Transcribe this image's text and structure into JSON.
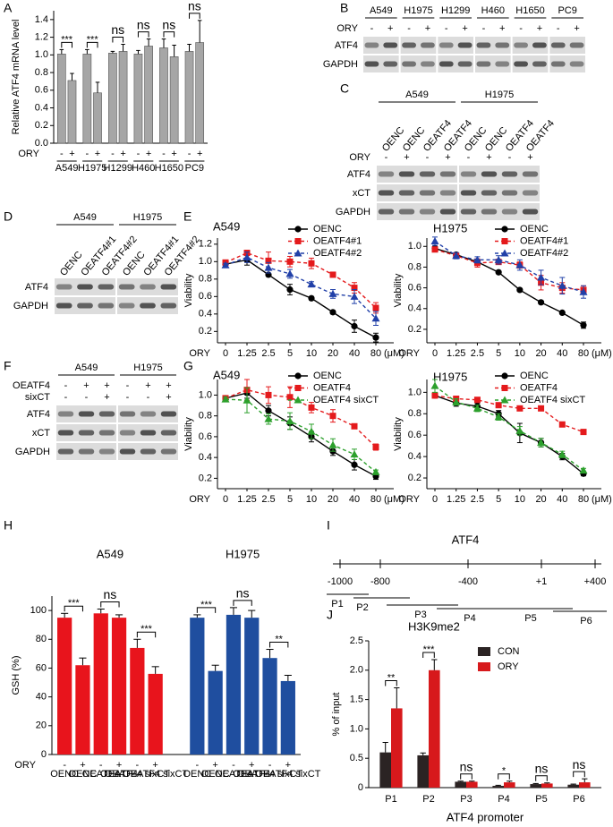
{
  "panels": [
    "A",
    "B",
    "C",
    "D",
    "E",
    "F",
    "G",
    "H",
    "I",
    "J"
  ],
  "chart_data": [
    {
      "type": "bar",
      "ylabel": "Relative ATF4 mRNA level",
      "row_label": "ORY",
      "categories": [
        "-",
        "+",
        "-",
        "+",
        "-",
        "+",
        "-",
        "+",
        "-",
        "+",
        "-",
        "+"
      ],
      "groups": [
        "A549",
        "H1975",
        "H1299",
        "H460",
        "H1650",
        "PC9"
      ],
      "values": [
        1.01,
        0.71,
        1.01,
        0.57,
        1.02,
        1.04,
        1.01,
        1.1,
        1.08,
        0.98,
        1.04,
        1.14
      ],
      "errors": [
        0.05,
        0.08,
        0.05,
        0.12,
        0.02,
        0.08,
        0.04,
        0.08,
        0.1,
        0.13,
        0.08,
        0.25
      ],
      "color": "#a6a6a6",
      "annotations": [
        "***",
        "***",
        "ns",
        "ns",
        "ns",
        "ns"
      ],
      "ylim": [
        0,
        1.5
      ],
      "yticks": [
        {
          "value": 0,
          "label": "0.0"
        },
        0.2,
        0.4,
        0.6,
        0.8,
        {
          "value": 1,
          "label": "1.0"
        },
        1.2,
        1.4
      ]
    },
    {
      "type": "line",
      "title": "A549",
      "ylabel": "Viability",
      "xlabel": "ORY",
      "x_unit": "(μM)",
      "categories": [
        "0",
        "1.25",
        "2.5",
        "5",
        "10",
        "20",
        "40",
        "80"
      ],
      "series": [
        {
          "name": "OENC",
          "color": "#000000",
          "marker": "circle",
          "dashed": false,
          "values": [
            0.97,
            1.02,
            0.85,
            0.68,
            0.58,
            0.42,
            0.26,
            0.13
          ],
          "errors": [
            0.02,
            0.06,
            0.02,
            0.06,
            0.02,
            0.02,
            0.07,
            0.05
          ]
        },
        {
          "name": "OEATF4#1",
          "color": "#e41a1c",
          "marker": "square",
          "dashed": true,
          "values": [
            0.99,
            1.1,
            1.01,
            1.0,
            0.98,
            0.85,
            0.7,
            0.47
          ],
          "errors": [
            0.02,
            0.03,
            0.1,
            0.06,
            0.06,
            0.02,
            0.06,
            0.06
          ]
        },
        {
          "name": "OEATF4#2",
          "color": "#2140a8",
          "marker": "triangle",
          "dashed": true,
          "values": [
            0.96,
            1.05,
            0.93,
            0.86,
            0.74,
            0.63,
            0.6,
            0.35
          ],
          "errors": [
            0.02,
            0.06,
            0.06,
            0.05,
            0.03,
            0.05,
            0.08,
            0.08
          ]
        }
      ],
      "ylim": [
        0.07,
        1.27
      ],
      "yticks": [
        0.2,
        0.4,
        0.6,
        0.8,
        {
          "value": 1,
          "label": "1.0"
        },
        1.2
      ],
      "legend": "upper right"
    },
    {
      "type": "line",
      "title": "H1975",
      "ylabel": "Viability",
      "xlabel": "ORY",
      "x_unit": "(μM)",
      "categories": [
        "0",
        "1.25",
        "2.5",
        "5",
        "10",
        "20",
        "40",
        "80"
      ],
      "series": [
        {
          "name": "OENC",
          "color": "#000000",
          "marker": "circle",
          "dashed": false,
          "values": [
            0.98,
            0.92,
            0.85,
            0.75,
            0.58,
            0.46,
            0.36,
            0.24
          ],
          "errors": [
            0.02,
            0.01,
            0.02,
            0.01,
            0.01,
            0.01,
            0.01,
            0.03
          ]
        },
        {
          "name": "OEATF4#1",
          "color": "#e41a1c",
          "marker": "square",
          "dashed": true,
          "values": [
            0.97,
            0.91,
            0.84,
            0.85,
            0.82,
            0.65,
            0.6,
            0.58
          ],
          "errors": [
            0.02,
            0.02,
            0.04,
            0.02,
            0.03,
            0.07,
            0.05,
            0.04
          ]
        },
        {
          "name": "OEATF4#2",
          "color": "#2140a8",
          "marker": "triangle",
          "dashed": true,
          "values": [
            1.05,
            0.91,
            0.87,
            0.87,
            0.82,
            0.7,
            0.62,
            0.56
          ],
          "errors": [
            0.04,
            0.03,
            0.03,
            0.04,
            0.05,
            0.07,
            0.08,
            0.06
          ]
        }
      ],
      "ylim": [
        0.07,
        1.08
      ],
      "yticks": [
        0.2,
        0.4,
        0.6,
        0.8,
        {
          "value": 1,
          "label": "1.0"
        }
      ],
      "legend": "upper right"
    },
    {
      "type": "line",
      "title": "A549",
      "ylabel": "Viability",
      "xlabel": "ORY",
      "x_unit": "(μM)",
      "categories": [
        "0",
        "1.25",
        "2.5",
        "5",
        "10",
        "20",
        "40",
        "80"
      ],
      "series": [
        {
          "name": "OENC",
          "color": "#000000",
          "marker": "circle",
          "dashed": false,
          "values": [
            0.97,
            1.02,
            0.85,
            0.73,
            0.6,
            0.46,
            0.33,
            0.22
          ],
          "errors": [
            0.02,
            0.05,
            0.05,
            0.06,
            0.05,
            0.04,
            0.05,
            0.03
          ]
        },
        {
          "name": "OEATF4",
          "color": "#e41a1c",
          "marker": "square",
          "dashed": true,
          "values": [
            0.97,
            1.05,
            1.0,
            0.98,
            0.88,
            0.8,
            0.7,
            0.5
          ],
          "errors": [
            0.02,
            0.1,
            0.08,
            0.1,
            0.05,
            0.06,
            0.02,
            0.03
          ]
        },
        {
          "name": "OEATF4 sixCT",
          "color": "#2ca02c",
          "marker": "triangle",
          "dashed": true,
          "values": [
            0.96,
            0.95,
            0.77,
            0.75,
            0.65,
            0.52,
            0.43,
            0.26
          ],
          "errors": [
            0.02,
            0.12,
            0.05,
            0.08,
            0.07,
            0.06,
            0.05,
            0.02
          ]
        }
      ],
      "ylim": [
        0.1,
        1.15
      ],
      "yticks": [
        0.2,
        0.4,
        0.6,
        0.8,
        {
          "value": 1,
          "label": "1.0"
        }
      ],
      "legend": "upper right"
    },
    {
      "type": "line",
      "title": "H1975",
      "ylabel": "Viability",
      "xlabel": "ORY",
      "x_unit": "(μM)",
      "categories": [
        "0",
        "1.25",
        "2.5",
        "5",
        "10",
        "20",
        "40",
        "80"
      ],
      "series": [
        {
          "name": "OENC",
          "color": "#000000",
          "marker": "circle",
          "dashed": false,
          "values": [
            0.97,
            0.9,
            0.87,
            0.8,
            0.62,
            0.53,
            0.4,
            0.24
          ],
          "errors": [
            0.02,
            0.03,
            0.03,
            0.03,
            0.09,
            0.04,
            0.03,
            0.02
          ]
        },
        {
          "name": "OEATF4",
          "color": "#e41a1c",
          "marker": "square",
          "dashed": true,
          "values": [
            0.97,
            0.94,
            0.93,
            0.88,
            0.85,
            0.85,
            0.7,
            0.63
          ],
          "errors": [
            0.02,
            0.02,
            0.02,
            0.02,
            0.02,
            0.02,
            0.02,
            0.02
          ]
        },
        {
          "name": "OEATF4 sixCT",
          "color": "#2ca02c",
          "marker": "triangle",
          "dashed": true,
          "values": [
            1.06,
            0.91,
            0.85,
            0.77,
            0.64,
            0.53,
            0.42,
            0.27
          ],
          "errors": [
            0.06,
            0.03,
            0.03,
            0.03,
            0.04,
            0.04,
            0.03,
            0.02
          ]
        }
      ],
      "ylim": [
        0.1,
        1.12
      ],
      "yticks": [
        0.2,
        0.4,
        0.6,
        0.8,
        {
          "value": 1,
          "label": "1.0"
        }
      ],
      "legend": "upper right"
    },
    {
      "type": "bar",
      "ylabel": "GSH (%)",
      "row_label": "ORY",
      "categories": [
        "OENC",
        "OENC",
        "OEATF4",
        "OEATF4",
        "OEATF4 sixCT",
        "OEATF4 sixCT",
        "OENC",
        "OENC",
        "OEATF4",
        "OEATF4",
        "OEATF4 sixCT",
        "OEATF4 sixCT"
      ],
      "signs": [
        "-",
        "+",
        "-",
        "+",
        "-",
        "+",
        "-",
        "+",
        "-",
        "+",
        "-",
        "+"
      ],
      "groups": [
        "A549",
        "H1975"
      ],
      "group_colors": [
        "#e8141c",
        "#1f4e9f"
      ],
      "values": [
        95,
        62,
        98,
        95,
        74,
        56,
        95,
        58,
        97,
        95,
        67,
        51
      ],
      "errors": [
        3,
        5,
        3,
        2,
        6,
        5,
        2,
        4,
        5,
        5,
        6,
        4
      ],
      "annotations": [
        "***",
        "ns",
        "***",
        "***",
        "ns",
        "**"
      ],
      "ylim": [
        0,
        110
      ],
      "yticks": [
        0,
        20,
        40,
        60,
        80,
        100
      ]
    },
    {
      "type": "bar",
      "title": "H3K9me2",
      "ylabel": "% of input",
      "xlabel": "ATF4 promoter",
      "categories": [
        "P1",
        "P2",
        "P3",
        "P4",
        "P5",
        "P6"
      ],
      "series": [
        {
          "name": "CON",
          "color": "#2b2323",
          "values": [
            0.6,
            0.55,
            0.1,
            0.03,
            0.06,
            0.05
          ],
          "errors": [
            0.17,
            0.04,
            0.01,
            0.01,
            0.01,
            0.01
          ]
        },
        {
          "name": "ORY",
          "color": "#d7191c",
          "values": [
            1.35,
            2.0,
            0.1,
            0.09,
            0.07,
            0.09
          ],
          "errors": [
            0.35,
            0.18,
            0.01,
            0.02,
            0.01,
            0.06
          ]
        }
      ],
      "annotations": [
        "**",
        "***",
        "ns",
        "*",
        "ns",
        "ns"
      ],
      "ylim": [
        0,
        2.5
      ],
      "yticks": [
        0,
        0.5,
        {
          "value": 1,
          "label": "1.0"
        },
        1.5,
        {
          "value": 2,
          "label": "2.0"
        },
        2.5
      ],
      "legend": "upper center"
    }
  ],
  "blots": [
    {
      "groups": [
        "A549",
        "H1975",
        "H1299",
        "H460",
        "H1650",
        "PC9"
      ],
      "treatments": [
        {
          "label": "ORY",
          "signs": [
            "-",
            "+",
            "-",
            "+",
            "-",
            "+",
            "-",
            "+",
            "-",
            "+",
            "-",
            "+"
          ]
        }
      ],
      "rows": [
        "ATF4",
        "GAPDH"
      ]
    },
    {
      "groups": [
        "A549",
        "H1975"
      ],
      "lanes": [
        "OENC",
        "OENC",
        "OEATF4",
        "OEATF4",
        "OENC",
        "OENC",
        "OEATF4",
        "OEATF4"
      ],
      "treatments": [
        {
          "label": "ORY",
          "signs": [
            "-",
            "+",
            "-",
            "+",
            "-",
            "+",
            "-",
            "+"
          ]
        }
      ],
      "rows": [
        "ATF4",
        "xCT",
        "GAPDH"
      ]
    },
    {
      "groups": [
        "A549",
        "H1975"
      ],
      "lanes": [
        "OENC",
        "OEATF4#1",
        "OEATF4#2",
        "OENC",
        "OEATF4#1",
        "OEATF4#2"
      ],
      "rows": [
        "ATF4",
        "GAPDH"
      ]
    },
    {
      "groups": [
        "A549",
        "H1975"
      ],
      "treatments": [
        {
          "label": "OEATF4",
          "signs": [
            "-",
            "+",
            "+",
            "-",
            "+",
            "+"
          ]
        },
        {
          "label": "sixCT",
          "signs": [
            "-",
            "-",
            "+",
            "-",
            "-",
            "+"
          ]
        }
      ],
      "rows": [
        "ATF4",
        "xCT",
        "GAPDH"
      ]
    }
  ],
  "promoter_map": {
    "title": "ATF4",
    "positions": [
      "-1000",
      "-800",
      "-400",
      "+1",
      "+400"
    ],
    "fragments": [
      "P1",
      "P2",
      "P3",
      "P4",
      "P5",
      "P6"
    ]
  }
}
